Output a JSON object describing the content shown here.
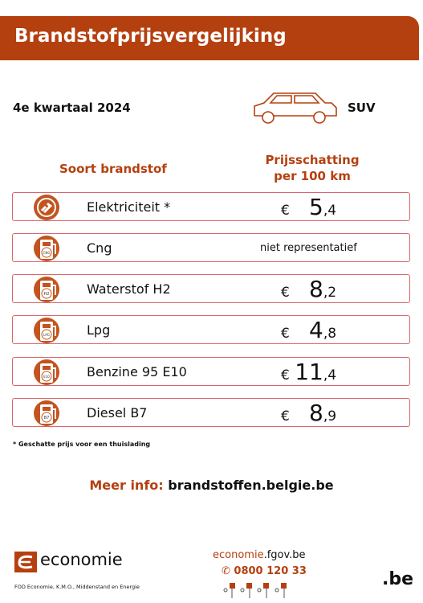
{
  "header": {
    "title": "Brandstofprijsvergelijking"
  },
  "period": "4e kwartaal 2024",
  "vehicle": "SUV",
  "table": {
    "columns": [
      "Soort brandstof",
      [
        "Prijsschatting",
        "per 100 km"
      ]
    ],
    "rows": [
      {
        "name": "Elektriciteit *",
        "currency": "€",
        "whole": "5",
        "fraction": ",4"
      },
      {
        "name": "Cng",
        "icon_label": "CNG",
        "note": "niet representatief"
      },
      {
        "name": "Waterstof H2",
        "icon_label": "H2",
        "currency": "€",
        "whole": "8",
        "fraction": ",2"
      },
      {
        "name": "Lpg",
        "icon_label": "LPG",
        "currency": "€",
        "whole": "4",
        "fraction": ",8"
      },
      {
        "name": "Benzine 95 E10",
        "icon_label": "E10",
        "currency": "€",
        "whole": "11",
        "fraction": ",4"
      },
      {
        "name": "Diesel B7",
        "icon_label": "B7",
        "currency": "€",
        "whole": "8",
        "fraction": ",9"
      }
    ]
  },
  "footnote": "* Geschatte prijs voor een thuislading",
  "more_info": {
    "label": "Meer info:",
    "link": "brandstoffen.belgie.be"
  },
  "footer": {
    "logo": "economie",
    "org": "FOD Economie, K.M.O., Middenstand en Energie",
    "website_prefix": "economie",
    "website_suffix": ".fgov.be",
    "phone": "0800 120 33",
    "brand": ".be"
  }
}
